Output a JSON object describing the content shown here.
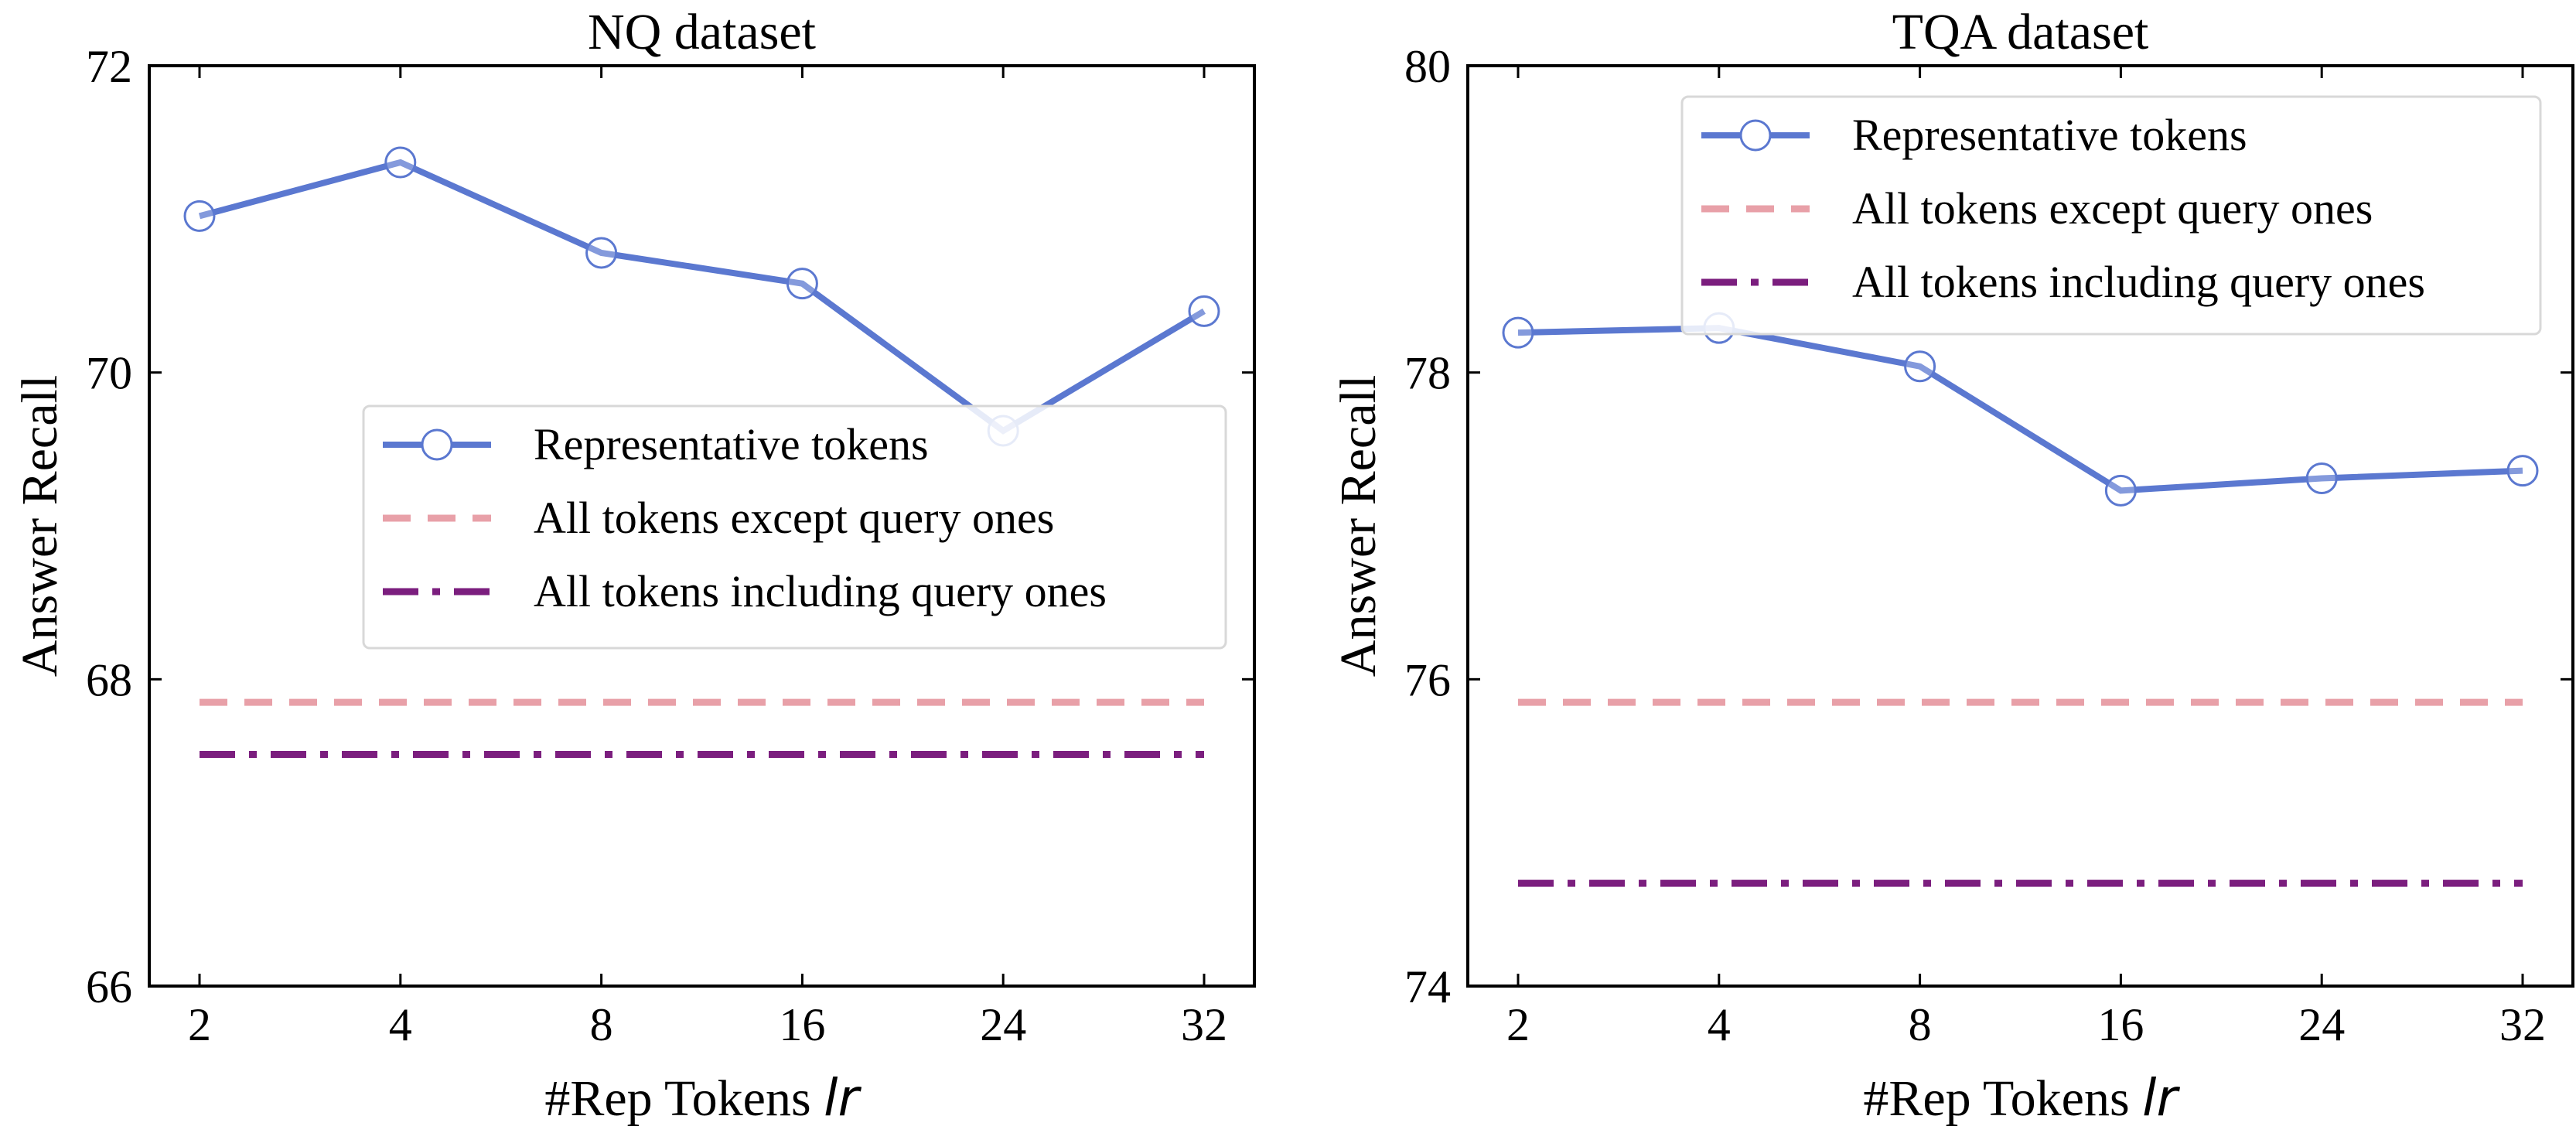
{
  "chart_data": [
    {
      "type": "line",
      "title": "NQ dataset",
      "xlabel": "#Rep Tokens",
      "xlabel_symbol": "lr",
      "ylabel": "Answer Recall",
      "categories": [
        "2",
        "4",
        "8",
        "16",
        "24",
        "32"
      ],
      "ylim": [
        66,
        72
      ],
      "yticks": [
        "66",
        "68",
        "70",
        "72"
      ],
      "legend_position": "center-right",
      "series": [
        {
          "name": "Representative tokens",
          "style": "solid-marker",
          "color": "#5b78d0",
          "values": [
            71.02,
            71.37,
            70.78,
            70.58,
            69.62,
            70.4
          ]
        },
        {
          "name": "All tokens except query ones",
          "style": "dashed",
          "color": "#e8a0a8",
          "values": [
            67.85,
            67.85,
            67.85,
            67.85,
            67.85,
            67.85
          ]
        },
        {
          "name": "All tokens including query ones",
          "style": "dashdot",
          "color": "#7b1e7e",
          "values": [
            67.51,
            67.51,
            67.51,
            67.51,
            67.51,
            67.51
          ]
        }
      ]
    },
    {
      "type": "line",
      "title": "TQA dataset",
      "xlabel": "#Rep Tokens",
      "xlabel_symbol": "lr",
      "ylabel": "Answer Recall",
      "categories": [
        "2",
        "4",
        "8",
        "16",
        "24",
        "32"
      ],
      "ylim": [
        74,
        80
      ],
      "yticks": [
        "74",
        "76",
        "78",
        "80"
      ],
      "legend_position": "top-right",
      "series": [
        {
          "name": "Representative tokens",
          "style": "solid-marker",
          "color": "#5b78d0",
          "values": [
            78.26,
            78.29,
            78.04,
            77.23,
            77.31,
            77.36
          ]
        },
        {
          "name": "All tokens except query ones",
          "style": "dashed",
          "color": "#e8a0a8",
          "values": [
            75.85,
            75.85,
            75.85,
            75.85,
            75.85,
            75.85
          ]
        },
        {
          "name": "All tokens including query ones",
          "style": "dashdot",
          "color": "#7b1e7e",
          "values": [
            74.67,
            74.67,
            74.67,
            74.67,
            74.67,
            74.67
          ]
        }
      ]
    }
  ]
}
